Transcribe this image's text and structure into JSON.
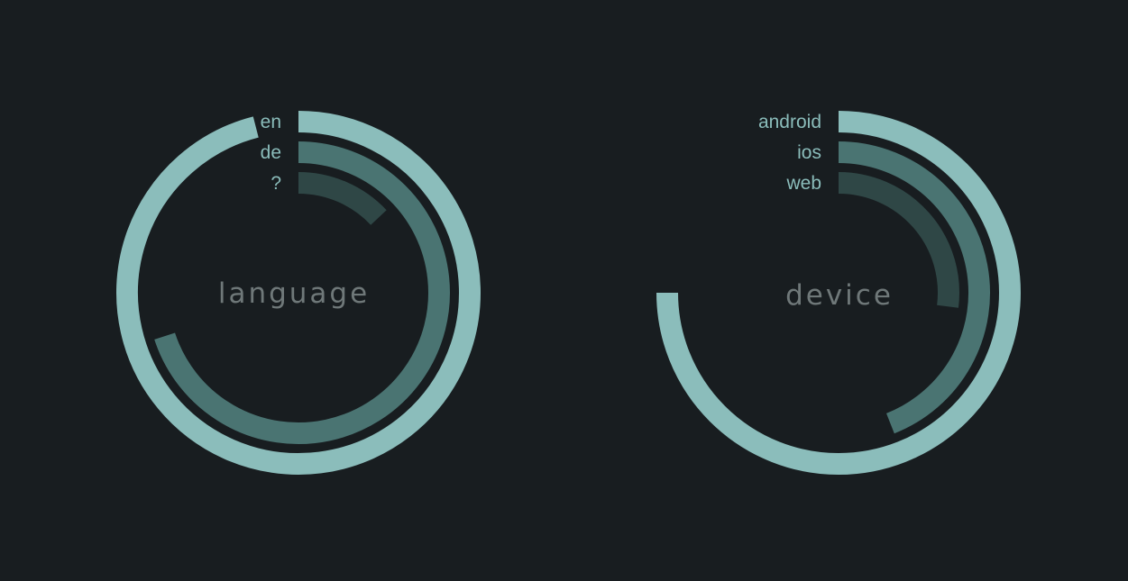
{
  "chart_data": [
    {
      "type": "radial-bar",
      "title": "language",
      "categories": [
        "en",
        "de",
        "?"
      ],
      "values": [
        0.96,
        0.7,
        0.13
      ],
      "colors": [
        "#8bbdbb",
        "#4a7472",
        "#2f4746"
      ]
    },
    {
      "type": "radial-bar",
      "title": "device",
      "categories": [
        "android",
        "ios",
        "web"
      ],
      "values": [
        0.75,
        0.44,
        0.27
      ],
      "colors": [
        "#8bbdbb",
        "#4a7472",
        "#2f4746"
      ]
    }
  ]
}
